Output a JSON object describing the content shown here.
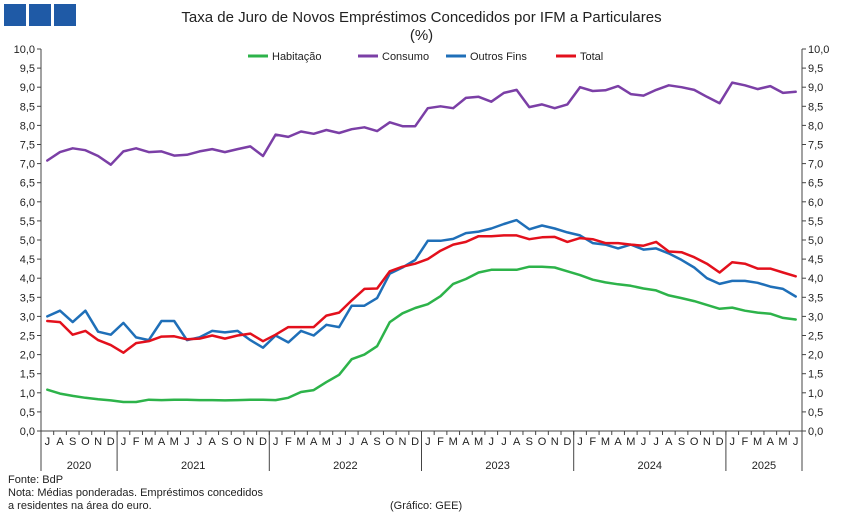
{
  "header": {
    "title": "Taxa de Juro de Novos Empréstimos  Concedidos por IFM a Particulares",
    "subtitle": "(%)"
  },
  "footer": {
    "source": "Fonte: BdP",
    "note_line1": "Nota: Médias ponderadas. Empréstimos concedidos",
    "note_line2": "a residentes na área do euro.",
    "credit": "(Gráfico: GEE)"
  },
  "colors": {
    "Habitação": "#2db34a",
    "Consumo": "#7b3fa6",
    "Outros Fins": "#1f6fb8",
    "Total": "#e3101c",
    "logo": "#1f5aa6"
  },
  "chart_data": {
    "type": "line",
    "x_month_labels": [
      "J",
      "A",
      "S",
      "O",
      "N",
      "D",
      "J",
      "F",
      "M",
      "A",
      "M",
      "J",
      "J",
      "A",
      "S",
      "O",
      "N",
      "D",
      "J",
      "F",
      "M",
      "A",
      "M",
      "J",
      "J",
      "A",
      "S",
      "O",
      "N",
      "D",
      "J",
      "F",
      "M",
      "A",
      "M",
      "J",
      "J",
      "A",
      "S",
      "O",
      "N",
      "D",
      "J",
      "F",
      "M",
      "A",
      "M",
      "J",
      "J",
      "A",
      "S",
      "O",
      "N",
      "D",
      "J",
      "F",
      "M",
      "A",
      "M",
      "J"
    ],
    "x_year_labels": [
      {
        "label": "2020",
        "start": 0,
        "end": 5
      },
      {
        "label": "2021",
        "start": 6,
        "end": 17
      },
      {
        "label": "2022",
        "start": 18,
        "end": 29
      },
      {
        "label": "2023",
        "start": 30,
        "end": 41
      },
      {
        "label": "2024",
        "start": 42,
        "end": 53
      },
      {
        "label": "2025",
        "start": 54,
        "end": 59
      }
    ],
    "y_ticks": [
      "0,0",
      "0,5",
      "1,0",
      "1,5",
      "2,0",
      "2,5",
      "3,0",
      "3,5",
      "4,0",
      "4,5",
      "5,0",
      "5,5",
      "6,0",
      "6,5",
      "7,0",
      "7,5",
      "8,0",
      "8,5",
      "9,0",
      "9,5",
      "10,0"
    ],
    "ylim": [
      0,
      10
    ],
    "legend_position": "top-center",
    "grid": false,
    "series": [
      {
        "name": "Habitação",
        "values": [
          1.08,
          0.98,
          0.92,
          0.87,
          0.83,
          0.8,
          0.76,
          0.76,
          0.82,
          0.81,
          0.82,
          0.82,
          0.81,
          0.81,
          0.8,
          0.81,
          0.82,
          0.82,
          0.81,
          0.87,
          1.02,
          1.07,
          1.28,
          1.47,
          1.88,
          2.0,
          2.22,
          2.85,
          3.08,
          3.22,
          3.32,
          3.53,
          3.85,
          3.98,
          4.15,
          4.22,
          4.22,
          4.22,
          4.3,
          4.3,
          4.28,
          4.18,
          4.08,
          3.96,
          3.89,
          3.84,
          3.8,
          3.73,
          3.68,
          3.55,
          3.48,
          3.4,
          3.3,
          3.2,
          3.23,
          3.15,
          3.1,
          3.07,
          2.96,
          2.92
        ]
      },
      {
        "name": "Consumo",
        "values": [
          7.08,
          7.3,
          7.4,
          7.35,
          7.2,
          6.97,
          7.32,
          7.4,
          7.3,
          7.32,
          7.21,
          7.23,
          7.32,
          7.38,
          7.3,
          7.38,
          7.45,
          7.2,
          7.76,
          7.7,
          7.84,
          7.78,
          7.88,
          7.8,
          7.9,
          7.95,
          7.85,
          8.08,
          7.98,
          7.98,
          8.45,
          8.5,
          8.45,
          8.72,
          8.75,
          8.62,
          8.85,
          8.93,
          8.48,
          8.55,
          8.45,
          8.55,
          9.0,
          8.9,
          8.92,
          9.03,
          8.82,
          8.78,
          8.93,
          9.05,
          9.0,
          8.93,
          8.75,
          8.58,
          9.12,
          9.05,
          8.95,
          9.03,
          8.85,
          8.88
        ]
      },
      {
        "name": "Outros Fins",
        "values": [
          3.0,
          3.15,
          2.85,
          3.15,
          2.6,
          2.52,
          2.83,
          2.45,
          2.38,
          2.88,
          2.88,
          2.38,
          2.45,
          2.62,
          2.58,
          2.62,
          2.38,
          2.18,
          2.5,
          2.32,
          2.62,
          2.5,
          2.78,
          2.72,
          3.28,
          3.28,
          3.48,
          4.12,
          4.28,
          4.48,
          4.98,
          4.98,
          5.03,
          5.18,
          5.22,
          5.3,
          5.42,
          5.52,
          5.28,
          5.38,
          5.3,
          5.2,
          5.12,
          4.92,
          4.88,
          4.78,
          4.88,
          4.75,
          4.78,
          4.65,
          4.48,
          4.28,
          4.0,
          3.85,
          3.93,
          3.93,
          3.88,
          3.78,
          3.72,
          3.52
        ]
      },
      {
        "name": "Total",
        "values": [
          2.88,
          2.85,
          2.52,
          2.62,
          2.38,
          2.25,
          2.05,
          2.3,
          2.35,
          2.47,
          2.48,
          2.4,
          2.42,
          2.5,
          2.42,
          2.5,
          2.55,
          2.35,
          2.52,
          2.72,
          2.72,
          2.72,
          3.02,
          3.1,
          3.42,
          3.72,
          3.73,
          4.18,
          4.3,
          4.38,
          4.5,
          4.72,
          4.88,
          4.95,
          5.1,
          5.1,
          5.12,
          5.12,
          5.02,
          5.07,
          5.08,
          4.95,
          5.05,
          5.02,
          4.92,
          4.92,
          4.88,
          4.85,
          4.95,
          4.7,
          4.68,
          4.55,
          4.38,
          4.15,
          4.42,
          4.38,
          4.25,
          4.25,
          4.15,
          4.05
        ]
      }
    ]
  }
}
